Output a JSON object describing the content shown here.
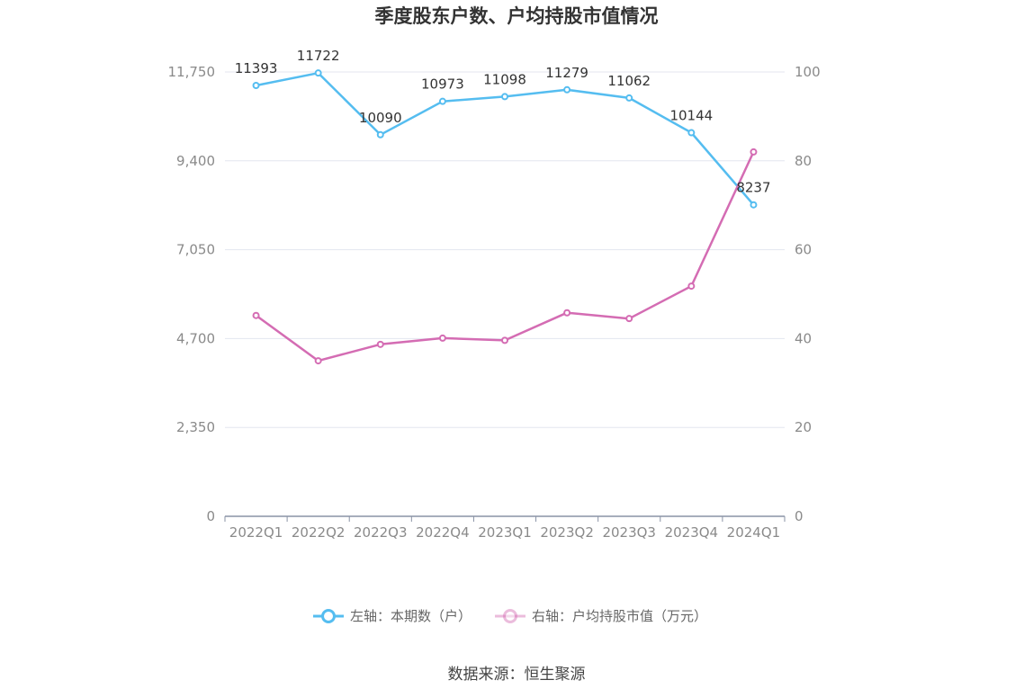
{
  "chart_data": {
    "type": "line",
    "title": "季度股东户数、户均持股市值情况",
    "categories": [
      "2022Q1",
      "2022Q2",
      "2022Q3",
      "2022Q4",
      "2023Q1",
      "2023Q2",
      "2023Q3",
      "2023Q4",
      "2024Q1"
    ],
    "y_left": {
      "ticks": [
        "0",
        "2,350",
        "4,700",
        "7,050",
        "9,400",
        "11,750"
      ],
      "range": [
        0,
        11750
      ]
    },
    "y_right": {
      "ticks": [
        "0",
        "20",
        "40",
        "60",
        "80",
        "100"
      ],
      "range": [
        0,
        100
      ]
    },
    "series": [
      {
        "name": "左轴：本期数（户）",
        "axis": "left",
        "color": "#55bdf0",
        "values": [
          11393,
          11722,
          10090,
          10973,
          11098,
          11279,
          11062,
          10144,
          8237
        ],
        "labels": [
          "11393",
          "11722",
          "10090",
          "10973",
          "11098",
          "11279",
          "11062",
          "10144",
          "8237"
        ]
      },
      {
        "name": "右轴：户均持股市值（万元）",
        "axis": "right",
        "color": "#d46cb3",
        "values": [
          45.2,
          35.0,
          38.7,
          40.1,
          39.6,
          45.8,
          44.5,
          51.8,
          82.0
        ]
      }
    ],
    "grid": true,
    "legend_position": "bottom"
  },
  "source": "数据来源：恒生聚源"
}
